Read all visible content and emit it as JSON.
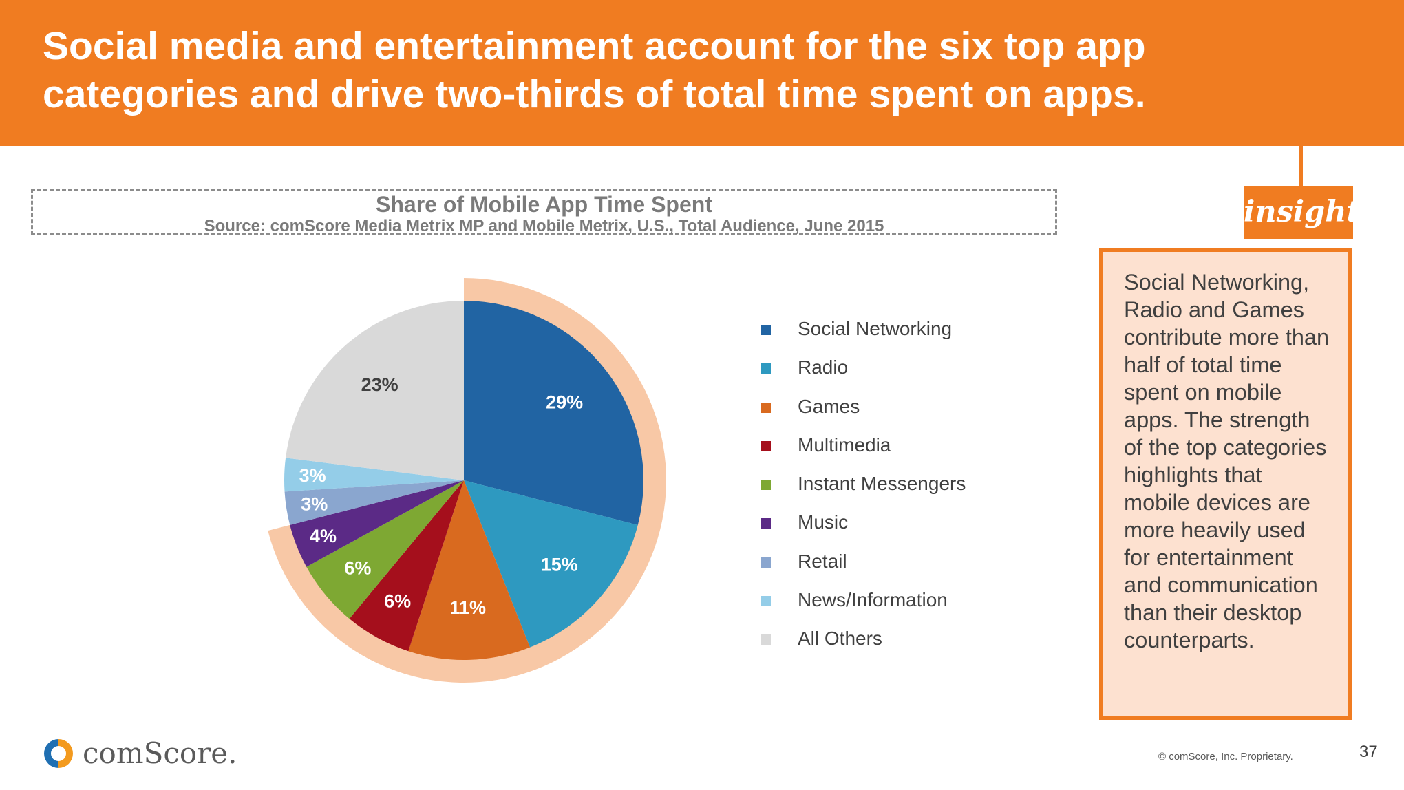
{
  "header": {
    "title": "Social media and entertainment account for the six top app categories and drive two-thirds of total time spent on apps."
  },
  "chart_box": {
    "title": "Share of Mobile App Time Spent",
    "source": "Source: comScore Media Metrix MP and Mobile Metrix, U.S., Total Audience, June 2015"
  },
  "chart_data": {
    "type": "pie",
    "title": "Share of Mobile App Time Spent",
    "unit": "%",
    "categories": [
      "Social Networking",
      "Radio",
      "Games",
      "Multimedia",
      "Instant Messengers",
      "Music",
      "Retail",
      "News/Information",
      "All Others"
    ],
    "values": [
      29,
      15,
      11,
      6,
      6,
      4,
      3,
      3,
      23
    ],
    "labels": [
      "29%",
      "15%",
      "11%",
      "6%",
      "6%",
      "4%",
      "3%",
      "3%",
      "23%"
    ],
    "colors": [
      "#2164a3",
      "#2e99c0",
      "#d96a1f",
      "#a50f1c",
      "#7ea833",
      "#5b2a86",
      "#8aa6cf",
      "#94cde8",
      "#d9d9d9"
    ],
    "label_colors": [
      "#ffffff",
      "#ffffff",
      "#ffffff",
      "#ffffff",
      "#ffffff",
      "#ffffff",
      "#ffffff",
      "#ffffff",
      "#404040"
    ],
    "highlight": {
      "description": "top six categories",
      "from_category": "Social Networking",
      "to_category": "Music",
      "color": "#f8c8a6"
    },
    "legend_position": "right",
    "start_angle_deg": 0,
    "direction": "clockwise"
  },
  "insight": {
    "tag": "insight",
    "text": "Social Networking, Radio and Games contribute more than half of total time spent on mobile apps. The strength of the top categories highlights that mobile devices are more heavily used for entertainment and communication than their desktop counterparts."
  },
  "footer": {
    "logo_text": "comScore.",
    "copyright": "© comScore, Inc. Proprietary.",
    "page_number": "37"
  },
  "colors": {
    "accent": "#f07c21",
    "insight_bg": "#fde1d0"
  }
}
